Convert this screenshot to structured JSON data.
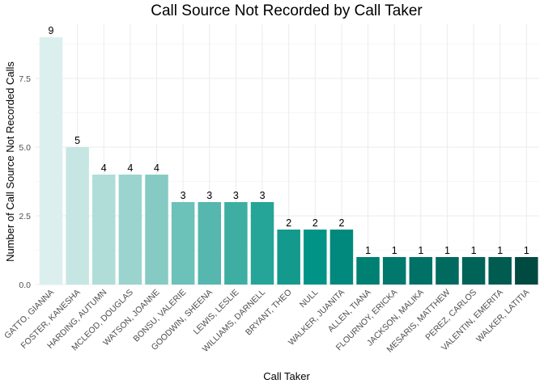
{
  "chart_data": {
    "type": "bar",
    "title": "Call Source Not Recorded by Call Taker",
    "xlabel": "Call Taker",
    "ylabel": "Number of Call Source Not Recorded Calls",
    "ylim": [
      0,
      9
    ],
    "yticks": [
      "0.0",
      "2.5",
      "5.0",
      "7.5"
    ],
    "grid": true,
    "legend": "none",
    "categories": [
      "GATTO, GIANNA",
      "FOSTER, KANESHA",
      "HARDING, AUTUMN",
      "MCLEOD, DOUGLAS",
      "WATSON, JOANNE",
      "BONSU, VALERIE",
      "GOODWIN, SHEENA",
      "LEWIS, LESLIE",
      "WILLIAMS, DARNELL",
      "BRYANT, THEO",
      "NULL",
      "WALKER, JUANITA",
      "ALLEN, TIANA",
      "FLOURNOY, ERICKA",
      "JACKSON, MALIKA",
      "MESARIS, MATTHEW",
      "PEREZ, CARLOS",
      "VALENTIN, EMERITA",
      "WALKER, LATITIA"
    ],
    "values": [
      9,
      5,
      4,
      4,
      4,
      3,
      3,
      3,
      3,
      2,
      2,
      2,
      1,
      1,
      1,
      1,
      1,
      1,
      1
    ],
    "colors": [
      "#dbefee",
      "#c6e6e3",
      "#b0ddd8",
      "#9bd4ce",
      "#85cbc3",
      "#6cc1b8",
      "#55b7ad",
      "#3eaea2",
      "#25a498",
      "#149a8d",
      "#009386",
      "#00897c",
      "#007f73",
      "#00786c",
      "#007166",
      "#006a5f",
      "#006358",
      "#005b51",
      "#004a42"
    ]
  }
}
